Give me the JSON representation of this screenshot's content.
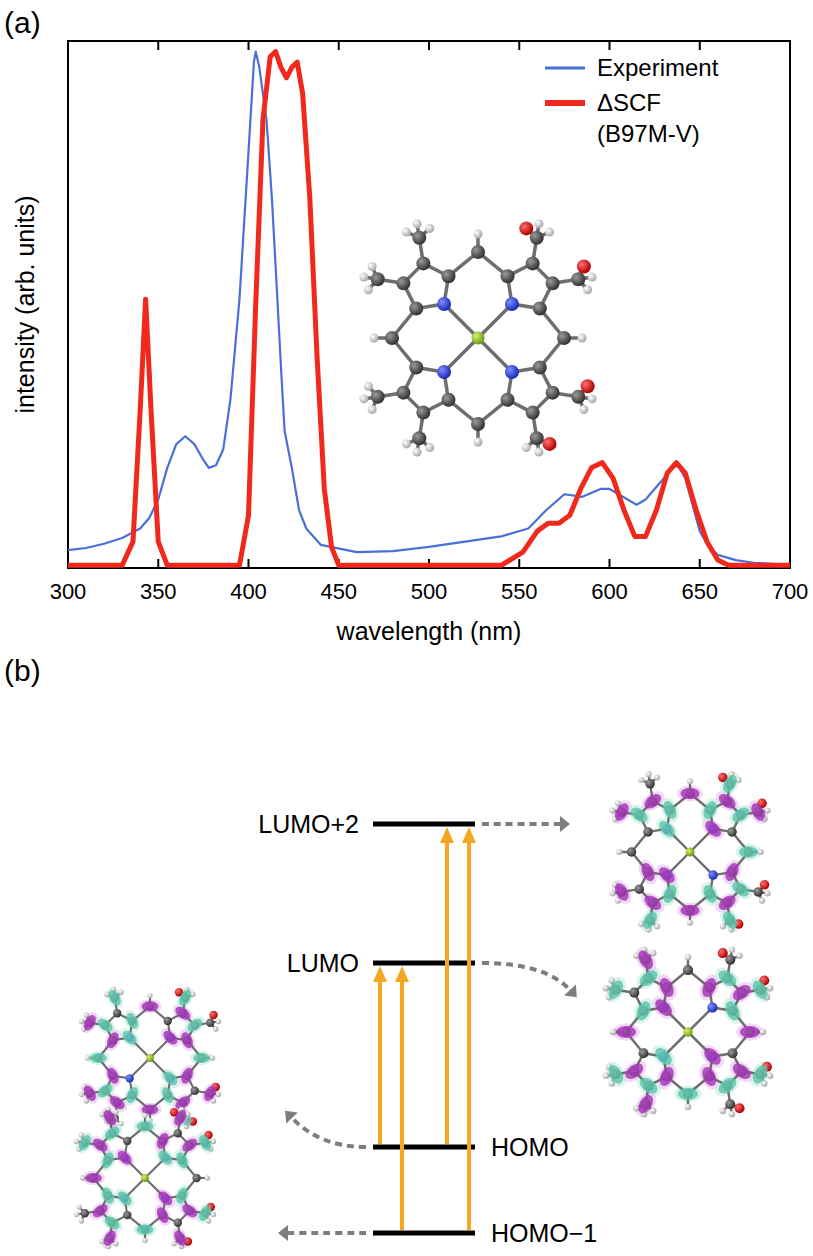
{
  "panel_labels": [
    "(a)",
    "(b)"
  ],
  "chart_data": {
    "type": "line",
    "x_label": "wavelength (nm)",
    "y_label": "intensity (arb. units)",
    "xlim": [
      300,
      700
    ],
    "xticks": [
      300,
      350,
      400,
      450,
      500,
      550,
      600,
      650,
      700
    ],
    "ylim": [
      0,
      1
    ],
    "tick_labels": "x",
    "legend": "upper right",
    "series": [
      {
        "name": "Experiment",
        "color": "#4b6fd9",
        "line_style": "solid",
        "x": [
          300,
          310,
          320,
          330,
          340,
          345,
          350,
          355,
          360,
          365,
          370,
          375,
          378,
          382,
          386,
          390,
          395,
          400,
          403,
          404,
          406,
          410,
          413,
          416,
          418,
          420,
          424,
          428,
          432,
          440,
          460,
          480,
          500,
          520,
          540,
          555,
          565,
          575,
          585,
          595,
          600,
          605,
          610,
          615,
          620,
          625,
          630,
          635,
          638,
          642,
          646,
          650,
          655,
          660,
          670,
          680,
          690,
          700
        ],
        "values": [
          0.034,
          0.038,
          0.046,
          0.057,
          0.075,
          0.095,
          0.13,
          0.19,
          0.235,
          0.25,
          0.235,
          0.205,
          0.19,
          0.195,
          0.225,
          0.32,
          0.51,
          0.79,
          0.96,
          0.98,
          0.95,
          0.85,
          0.7,
          0.51,
          0.38,
          0.26,
          0.19,
          0.11,
          0.075,
          0.044,
          0.03,
          0.032,
          0.04,
          0.05,
          0.06,
          0.075,
          0.11,
          0.14,
          0.135,
          0.15,
          0.15,
          0.14,
          0.13,
          0.12,
          0.13,
          0.15,
          0.17,
          0.19,
          0.195,
          0.17,
          0.12,
          0.07,
          0.04,
          0.025,
          0.015,
          0.01,
          0.008,
          0.005
        ]
      },
      {
        "name": "ΔSCF (B97M-V)",
        "color": "#f0291c",
        "line_style": "solid",
        "x": [
          300,
          330,
          336,
          340,
          343,
          346,
          350,
          355,
          395,
          400,
          404,
          408,
          412,
          415,
          418,
          421,
          424,
          427,
          430,
          434,
          438,
          442,
          446,
          450,
          540,
          552,
          560,
          566,
          572,
          578,
          584,
          590,
          596,
          602,
          608,
          614,
          620,
          626,
          632,
          637,
          642,
          648,
          654,
          660,
          666,
          700
        ],
        "values": [
          0.005,
          0.005,
          0.05,
          0.3,
          0.51,
          0.3,
          0.05,
          0.005,
          0.005,
          0.1,
          0.5,
          0.85,
          0.97,
          0.98,
          0.95,
          0.93,
          0.95,
          0.96,
          0.9,
          0.7,
          0.4,
          0.15,
          0.04,
          0.005,
          0.005,
          0.03,
          0.07,
          0.085,
          0.085,
          0.1,
          0.15,
          0.19,
          0.2,
          0.17,
          0.11,
          0.06,
          0.06,
          0.11,
          0.18,
          0.2,
          0.18,
          0.11,
          0.05,
          0.015,
          0.005,
          0.005
        ]
      }
    ]
  },
  "diagram": {
    "levels": [
      "LUMO+2",
      "LUMO",
      "HOMO",
      "HOMO−1"
    ]
  }
}
